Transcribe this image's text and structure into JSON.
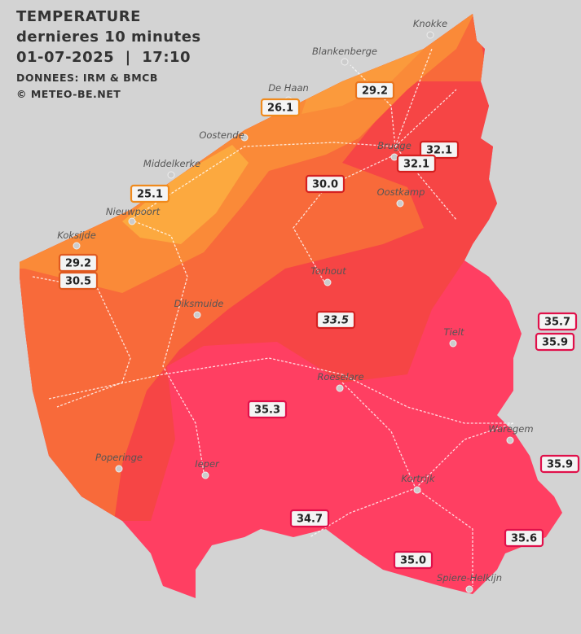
{
  "header": {
    "title": "TEMPERATURE",
    "subtitle": "dernieres 10 minutes",
    "datetime": "01-07-2025  |  17:10",
    "source": "DONNEES: IRM & BMCB",
    "credit": "© METEO-BE.NET"
  },
  "cities": [
    "Knokke",
    "Blankenberge",
    "De Haan",
    "Oostende",
    "Middelkerke",
    "Nieuwpoort",
    "Koksijde",
    "Brugge",
    "Oostkamp",
    "Torhout",
    "Diksmuide",
    "Tielt",
    "Roeselare",
    "Waregem",
    "Poperinge",
    "Ieper",
    "Kortrijk",
    "Spiere-Helkijn"
  ],
  "readings": [
    "29.2",
    "26.1",
    "25.1",
    "30.0",
    "32.1",
    "32.1",
    "29.2",
    "30.5",
    "33.5",
    "35.7",
    "35.9",
    "35.3",
    "35.9",
    "34.7",
    "35.6",
    "35.0"
  ]
}
